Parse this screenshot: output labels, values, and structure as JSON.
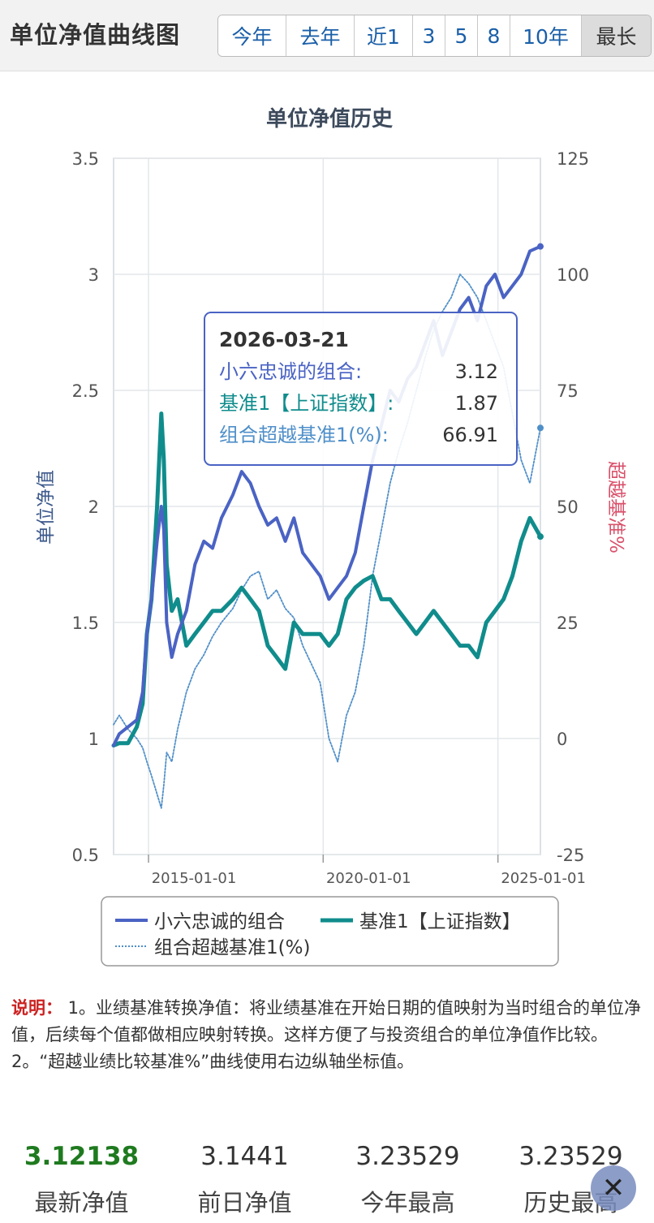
{
  "header": {
    "title": "单位净值曲线图",
    "ranges": [
      "今年",
      "去年",
      "近1",
      "3",
      "5",
      "8",
      "10年",
      "最长"
    ],
    "active_range": "最长"
  },
  "chart_data": {
    "type": "line",
    "title": "单位净值历史",
    "ylabel_left": "单位净值",
    "ylabel_right": "超越基准%",
    "ylim_left": [
      0.5,
      3.5
    ],
    "ylim_right": [
      -25,
      125
    ],
    "yticks_left": [
      "3.5",
      "3",
      "2.5",
      "2",
      "1.5",
      "1",
      "0.5"
    ],
    "yticks_right": [
      "125",
      "100",
      "75",
      "50",
      "25",
      "0",
      "-25"
    ],
    "xticks": [
      "2015-01-01",
      "2020-01-01",
      "2025-01-01"
    ],
    "xlim": [
      "2014-01-01",
      "2026-03-21"
    ],
    "grid": true,
    "legend_position": "bottom",
    "series": [
      {
        "name": "小六忠诚的组合",
        "color": "#4a63c4",
        "axis": "left",
        "x": [
          "2014-01-01",
          "2014-03-01",
          "2014-06-01",
          "2014-09-01",
          "2014-11-01",
          "2014-12-15",
          "2015-02-01",
          "2015-04-01",
          "2015-05-15",
          "2015-06-10",
          "2015-07-10",
          "2015-09-01",
          "2015-11-01",
          "2016-02-01",
          "2016-05-01",
          "2016-08-01",
          "2016-11-01",
          "2017-02-01",
          "2017-06-01",
          "2017-09-01",
          "2017-12-01",
          "2018-03-01",
          "2018-06-01",
          "2018-09-01",
          "2018-12-01",
          "2019-03-01",
          "2019-06-01",
          "2019-09-01",
          "2019-12-01",
          "2020-03-01",
          "2020-06-01",
          "2020-09-01",
          "2020-12-01",
          "2021-03-01",
          "2021-06-01",
          "2021-09-01",
          "2021-12-01",
          "2022-03-01",
          "2022-06-01",
          "2022-09-01",
          "2022-12-01",
          "2023-03-01",
          "2023-06-01",
          "2023-09-01",
          "2023-12-01",
          "2024-03-01",
          "2024-06-01",
          "2024-09-01",
          "2024-12-01",
          "2025-03-01",
          "2025-06-01",
          "2025-09-01",
          "2025-12-01",
          "2026-03-21"
        ],
        "values": [
          0.97,
          1.02,
          1.05,
          1.08,
          1.2,
          1.45,
          1.6,
          1.85,
          2.0,
          1.9,
          1.5,
          1.35,
          1.45,
          1.55,
          1.75,
          1.85,
          1.82,
          1.95,
          2.05,
          2.15,
          2.1,
          2.0,
          1.92,
          1.95,
          1.85,
          1.95,
          1.8,
          1.75,
          1.7,
          1.6,
          1.65,
          1.7,
          1.8,
          2.0,
          2.2,
          2.35,
          2.5,
          2.45,
          2.55,
          2.6,
          2.7,
          2.8,
          2.65,
          2.75,
          2.85,
          2.9,
          2.8,
          2.95,
          3.0,
          2.9,
          2.95,
          3.0,
          3.1,
          3.12
        ]
      },
      {
        "name": "基准1【上证指数】",
        "color": "#108c8c",
        "axis": "left",
        "x": [
          "2014-01-01",
          "2014-03-01",
          "2014-06-01",
          "2014-09-01",
          "2014-11-01",
          "2014-12-15",
          "2015-02-01",
          "2015-04-01",
          "2015-05-15",
          "2015-06-10",
          "2015-07-10",
          "2015-09-01",
          "2015-11-01",
          "2016-02-01",
          "2016-05-01",
          "2016-08-01",
          "2016-11-01",
          "2017-02-01",
          "2017-06-01",
          "2017-09-01",
          "2017-12-01",
          "2018-03-01",
          "2018-06-01",
          "2018-09-01",
          "2018-12-01",
          "2019-03-01",
          "2019-06-01",
          "2019-09-01",
          "2019-12-01",
          "2020-03-01",
          "2020-06-01",
          "2020-09-01",
          "2020-12-01",
          "2021-03-01",
          "2021-06-01",
          "2021-09-01",
          "2021-12-01",
          "2022-03-01",
          "2022-06-01",
          "2022-09-01",
          "2022-12-01",
          "2023-03-01",
          "2023-06-01",
          "2023-09-01",
          "2023-12-01",
          "2024-03-01",
          "2024-06-01",
          "2024-09-01",
          "2024-12-01",
          "2025-03-01",
          "2025-06-01",
          "2025-09-01",
          "2025-12-01",
          "2026-03-21"
        ],
        "values": [
          0.97,
          0.98,
          0.98,
          1.05,
          1.15,
          1.45,
          1.6,
          2.0,
          2.4,
          2.2,
          1.75,
          1.55,
          1.6,
          1.4,
          1.45,
          1.5,
          1.55,
          1.55,
          1.6,
          1.65,
          1.6,
          1.55,
          1.4,
          1.35,
          1.3,
          1.5,
          1.45,
          1.45,
          1.45,
          1.4,
          1.45,
          1.6,
          1.65,
          1.68,
          1.7,
          1.6,
          1.6,
          1.55,
          1.5,
          1.45,
          1.5,
          1.55,
          1.5,
          1.45,
          1.4,
          1.4,
          1.35,
          1.5,
          1.55,
          1.6,
          1.7,
          1.85,
          1.95,
          1.87
        ]
      },
      {
        "name": "组合超越基准1(%)",
        "color": "#4f8fc9",
        "axis": "right",
        "dashed": true,
        "x": [
          "2014-01-01",
          "2014-03-01",
          "2014-06-01",
          "2014-09-01",
          "2014-11-01",
          "2014-12-15",
          "2015-02-01",
          "2015-04-01",
          "2015-05-15",
          "2015-06-10",
          "2015-07-10",
          "2015-09-01",
          "2015-11-01",
          "2016-02-01",
          "2016-05-01",
          "2016-08-01",
          "2016-11-01",
          "2017-02-01",
          "2017-06-01",
          "2017-09-01",
          "2017-12-01",
          "2018-03-01",
          "2018-06-01",
          "2018-09-01",
          "2018-12-01",
          "2019-03-01",
          "2019-06-01",
          "2019-09-01",
          "2019-12-01",
          "2020-03-01",
          "2020-06-01",
          "2020-09-01",
          "2020-12-01",
          "2021-03-01",
          "2021-06-01",
          "2021-09-01",
          "2021-12-01",
          "2022-03-01",
          "2022-06-01",
          "2022-09-01",
          "2022-12-01",
          "2023-03-01",
          "2023-06-01",
          "2023-09-01",
          "2023-12-01",
          "2024-03-01",
          "2024-06-01",
          "2024-09-01",
          "2024-12-01",
          "2025-03-01",
          "2025-06-01",
          "2025-09-01",
          "2025-12-01",
          "2026-03-21"
        ],
        "values": [
          3,
          5,
          2,
          0,
          -2,
          -5,
          -8,
          -12,
          -15,
          -10,
          -3,
          -5,
          2,
          10,
          15,
          18,
          22,
          25,
          28,
          32,
          35,
          36,
          30,
          32,
          28,
          26,
          20,
          16,
          12,
          0,
          -5,
          5,
          10,
          20,
          35,
          45,
          55,
          62,
          68,
          75,
          82,
          88,
          92,
          95,
          100,
          98,
          95,
          90,
          85,
          80,
          70,
          60,
          55,
          66.91
        ]
      }
    ],
    "tooltip": {
      "date": "2026-03-21",
      "rows": [
        {
          "label": "小六忠诚的组合:",
          "value": "3.12"
        },
        {
          "label": "基准1【上证指数】:",
          "value": "1.87"
        },
        {
          "label": "组合超越基准1(%):",
          "value": "66.91"
        }
      ]
    }
  },
  "note": {
    "label": "说明：",
    "text": " 1。业绩基准转换净值：将业绩基准在开始日期的值映射为当时组合的单位净值，后续每个值都做相应映射转换。这样方便了与投资组合的单位净值作比较。 2。“超越业绩比较基准%”曲线使用右边纵轴坐标值。"
  },
  "stats": [
    {
      "value": "3.12138",
      "label": "最新净值"
    },
    {
      "value": "3.1441",
      "label": "前日净值"
    },
    {
      "value": "3.23529",
      "label": "今年最高"
    },
    {
      "value": "3.23529",
      "label": "历史最高"
    }
  ],
  "close_icon": "close-icon"
}
